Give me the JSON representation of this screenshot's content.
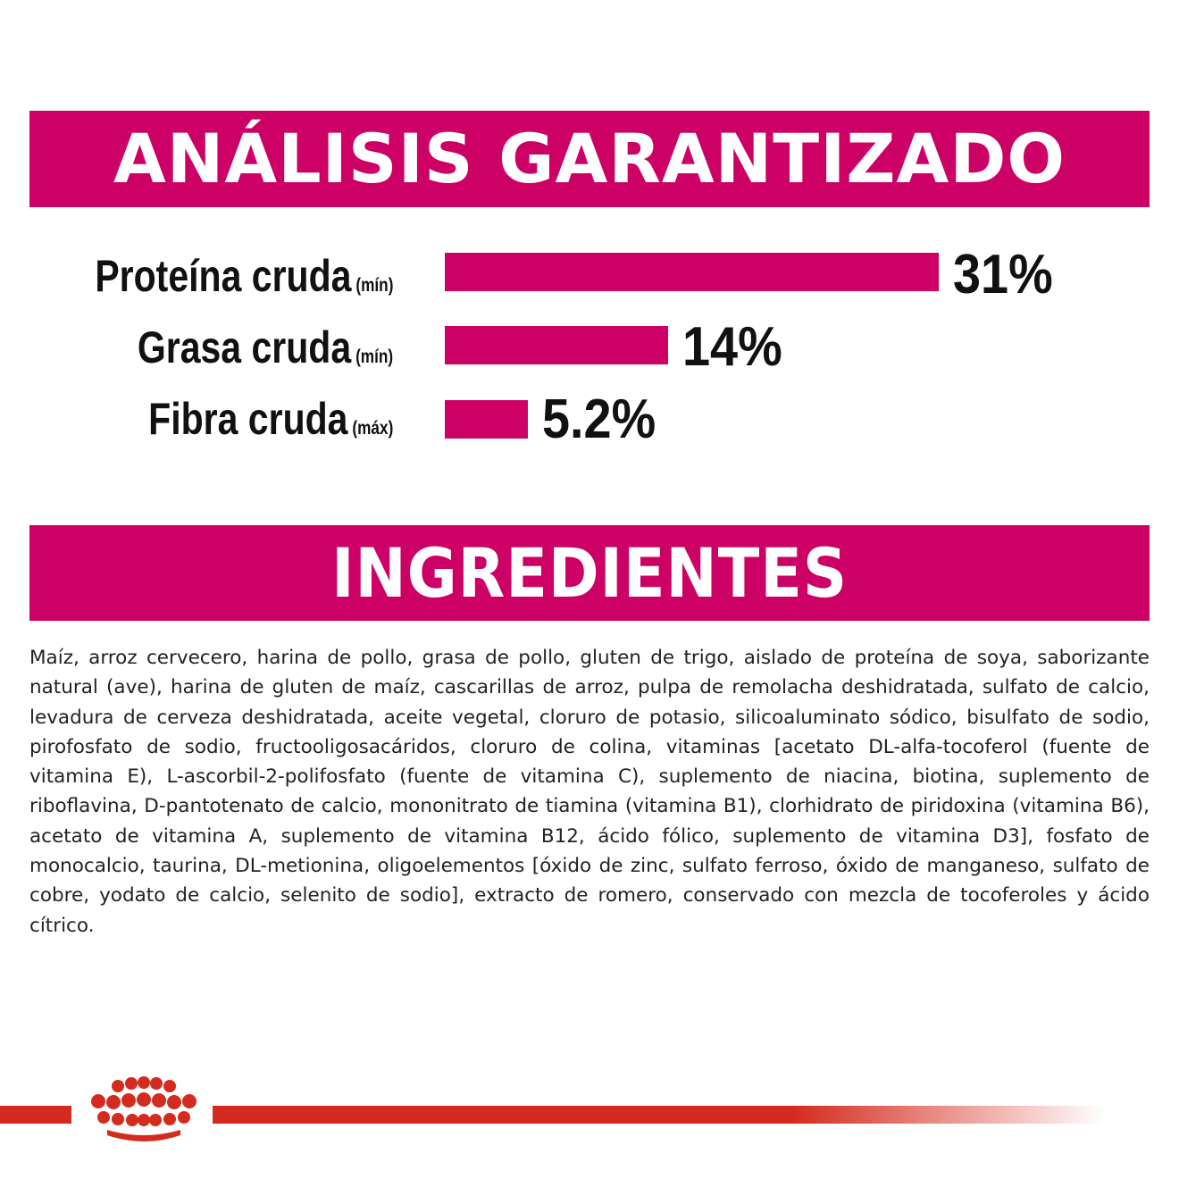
{
  "analysis": {
    "title": "ANÁLISIS GARANTIZADO",
    "accent_color": "#cd0065",
    "items": [
      {
        "name": "Proteína cruda",
        "qualifier": "(mín)",
        "value": "31%",
        "percent": 31
      },
      {
        "name": "Grasa cruda",
        "qualifier": "(mín)",
        "value": "14%",
        "percent": 14
      },
      {
        "name": "Fibra cruda",
        "qualifier": "(máx)",
        "value": "5.2%",
        "percent": 5.2
      }
    ]
  },
  "ingredients": {
    "title": "INGREDIENTES",
    "text": "Maíz, arroz cervecero, harina de pollo, grasa de pollo, gluten de trigo, aislado de proteína de soya, saborizante natural (ave), harina de gluten de maíz, cascarillas de arroz, pulpa de remolacha deshidratada, sulfato de calcio, levadura de cerveza deshidratada, aceite vegetal, cloruro de potasio, silicoaluminato sódico, bisulfato de sodio, pirofosfato de sodio, fructooligosacáridos, cloruro de colina, vitaminas [acetato DL-alfa-tocoferol (fuente de vitamina E), L-ascorbil-2-polifosfato (fuente de vitamina C), suplemento de niacina, biotina, suplemento de riboflavina, D-pantotenato de calcio, mononitrato de tiamina (vitamina B1), clorhidrato de piridoxina (vitamina B6), acetato de vitamina A, suplemento de vitamina B12, ácido fólico, suplemento de vitamina D3], fosfato de monocalcio, taurina, DL-metionina, oligoelementos [óxido de zinc, sulfato ferroso, óxido de manganeso, sulfato de cobre, yodato de calcio, selenito de sodio], extracto de romero, conservado con mezcla de tocoferoles y ácido cítrico."
  },
  "footer": {
    "logo_icon": "royal-canin-crown-icon",
    "brand_color": "#d52b1e"
  }
}
